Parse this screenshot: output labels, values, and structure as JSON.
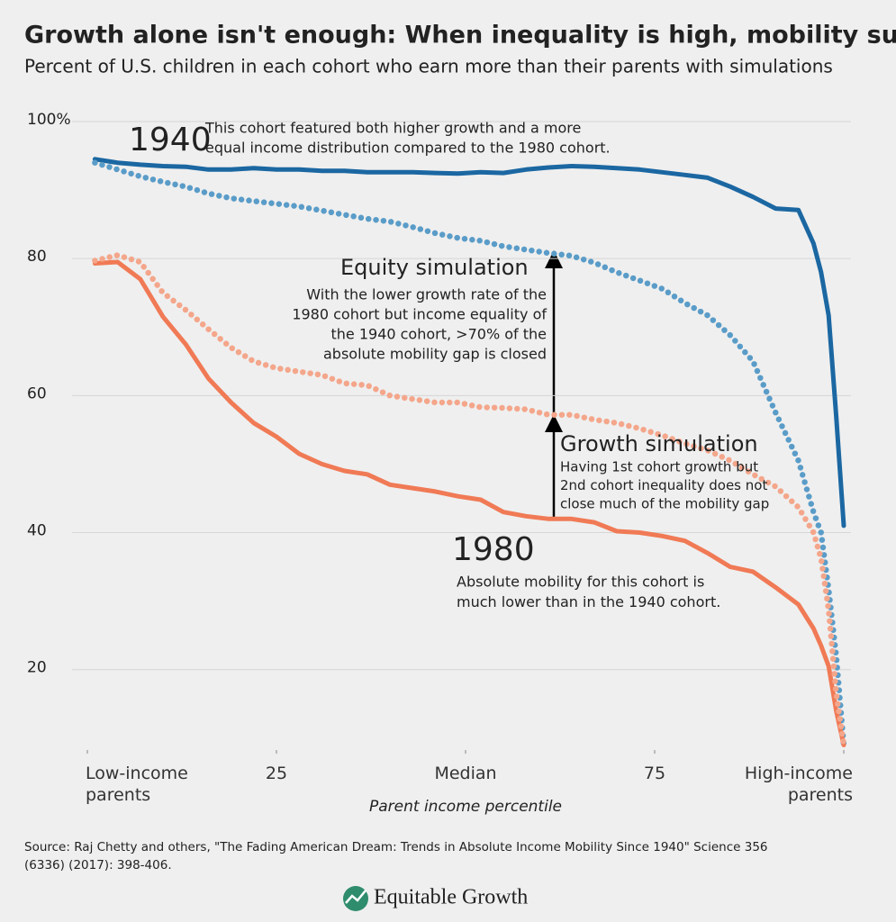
{
  "chart_data": {
    "type": "line",
    "title": "Growth alone isn't enough: When inequality is high, mobility suffers",
    "subtitle": "Percent of U.S. children in each cohort who earn more than their parents with simulations",
    "x_label": "Parent income percentile",
    "x": [
      1,
      4,
      7,
      10,
      13,
      16,
      19,
      22,
      25,
      28,
      31,
      34,
      37,
      40,
      43,
      46,
      49,
      52,
      55,
      58,
      61,
      64,
      67,
      70,
      73,
      76,
      79,
      82,
      85,
      88,
      91,
      94,
      96,
      97,
      98,
      99,
      100
    ],
    "series": [
      {
        "name": "1940",
        "color": "#1b67a2",
        "style": "solid",
        "values": [
          94.5,
          94,
          93.7,
          93.5,
          93.4,
          93,
          93,
          93.2,
          93,
          93,
          92.8,
          92.8,
          92.6,
          92.6,
          92.6,
          92.5,
          92.4,
          92.6,
          92.5,
          93,
          93.3,
          93.5,
          93.4,
          93.2,
          93,
          92.6,
          92.2,
          91.8,
          90.5,
          89,
          87.3,
          87.1,
          82.2,
          78,
          71.7,
          57,
          41
        ]
      },
      {
        "name": "Equity simulation",
        "color": "#5a9cc8",
        "style": "dotted",
        "values": [
          94,
          93,
          92,
          91.2,
          90.5,
          89.5,
          88.8,
          88.4,
          88,
          87.6,
          87,
          86.4,
          85.8,
          85.4,
          84.6,
          83.7,
          83,
          82.6,
          81.8,
          81.3,
          80.8,
          80.4,
          79.4,
          78,
          76.8,
          75.6,
          73.5,
          71.7,
          68.8,
          65,
          57.5,
          50.5,
          43,
          40,
          31.7,
          22,
          9
        ]
      },
      {
        "name": "1980",
        "color": "#f07a55",
        "style": "solid",
        "values": [
          79.3,
          79.5,
          77,
          71.5,
          67.5,
          62.5,
          59,
          56,
          54,
          51.5,
          50,
          49,
          48.5,
          47,
          46.5,
          46,
          45.3,
          44.8,
          43,
          42.4,
          42,
          42,
          41.5,
          40.2,
          40,
          39.5,
          38.8,
          37,
          35,
          34.3,
          32,
          29.5,
          26,
          23.5,
          20.5,
          14,
          9
        ]
      },
      {
        "name": "Growth simulation",
        "color": "#f4a68b",
        "style": "dotted",
        "values": [
          79.7,
          80.5,
          79.5,
          75,
          72.5,
          69.7,
          67,
          65,
          64,
          63.5,
          63,
          61.8,
          61.5,
          60,
          59.5,
          59,
          59,
          58.3,
          58.2,
          58,
          57.2,
          57.2,
          56.5,
          56,
          55.2,
          54.2,
          53,
          52,
          50.5,
          48.5,
          46.7,
          43.7,
          40,
          36.2,
          28.7,
          16.5,
          9
        ]
      }
    ],
    "xlim": [
      0,
      100
    ],
    "xticks": [
      {
        "value": 0,
        "label": "Low-income parents"
      },
      25,
      {
        "value": 50,
        "label": "Median"
      },
      75,
      {
        "value": 100,
        "label": "High-income parents"
      }
    ],
    "ylim": [
      8,
      100
    ],
    "yticks": [
      20,
      40,
      60,
      80,
      {
        "value": 100,
        "label": "100%"
      }
    ],
    "grid": true,
    "annotations": [
      [
        "This cohort featured both higher growth and a more",
        "equal income distribution compared to the 1980 cohort."
      ],
      [
        "With the lower growth rate of the",
        "1980 cohort but income equality of",
        "the 1940 cohort, >70% of the",
        "absolute mobility gap is closed"
      ],
      [
        "Having 1st cohort growth but",
        "2nd cohort inequality does not",
        "close much of the mobility gap"
      ],
      [
        "Absolute mobility for this cohort is",
        "much lower than in the 1940 cohort."
      ]
    ],
    "source": [
      "Source: Raj Chetty and others, \"The Fading American Dream: Trends in Absolute Income Mobility Since 1940\" Science 356",
      "(6336) (2017): 398-406."
    ],
    "logo": "Equitable Growth"
  }
}
